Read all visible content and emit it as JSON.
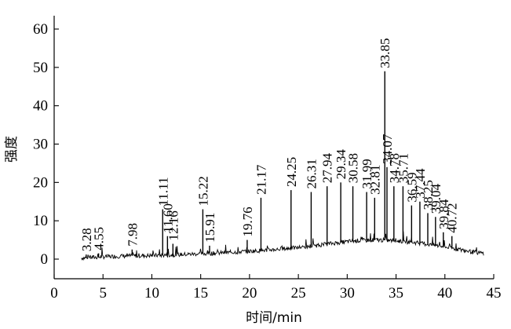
{
  "chart_data": {
    "type": "line",
    "title": "",
    "xlabel": "时间/min",
    "ylabel": "强度",
    "xlim": [
      0,
      45
    ],
    "ylim": [
      -5,
      60
    ],
    "x_ticks": [
      0,
      5,
      10,
      15,
      20,
      25,
      30,
      35,
      40,
      45
    ],
    "y_ticks": [
      0,
      10,
      20,
      30,
      40,
      50,
      60
    ],
    "grid": false,
    "legend": "none",
    "series": [
      {
        "x": [
          2.8,
          5,
          7,
          9,
          11,
          13,
          15,
          17,
          19,
          21,
          23,
          25,
          27,
          29,
          31,
          33,
          35,
          37,
          38.5,
          40,
          41.5,
          43,
          44
        ],
        "values": [
          0.3,
          0.6,
          0.8,
          0.9,
          1.0,
          1.2,
          1.4,
          1.6,
          1.9,
          2.2,
          2.6,
          3.0,
          3.6,
          4.3,
          4.8,
          5.0,
          4.8,
          4.3,
          3.8,
          3.2,
          2.5,
          1.8,
          1.5
        ]
      }
    ],
    "peaks": [
      {
        "label": "3.28",
        "x": 3.28,
        "y": 1.2
      },
      {
        "label": "4.55",
        "x": 4.55,
        "y": 1.5
      },
      {
        "label": "7.98",
        "x": 7.98,
        "y": 2.5
      },
      {
        "label": "11.11",
        "x": 11.11,
        "y": 13
      },
      {
        "label": "11.60",
        "x": 11.6,
        "y": 6
      },
      {
        "label": "12.16",
        "x": 12.16,
        "y": 4
      },
      {
        "label": "15.22",
        "x": 15.22,
        "y": 13
      },
      {
        "label": "15.91",
        "x": 15.91,
        "y": 3.5
      },
      {
        "label": "19.76",
        "x": 19.76,
        "y": 5
      },
      {
        "label": "21.17",
        "x": 21.17,
        "y": 16
      },
      {
        "label": "24.25",
        "x": 24.25,
        "y": 18
      },
      {
        "label": "26.31",
        "x": 26.31,
        "y": 17.5
      },
      {
        "label": "27.94",
        "x": 27.94,
        "y": 19
      },
      {
        "label": "29.34",
        "x": 29.34,
        "y": 20
      },
      {
        "label": "30.58",
        "x": 30.58,
        "y": 19
      },
      {
        "label": "31.99",
        "x": 31.99,
        "y": 17.5
      },
      {
        "label": "32.81",
        "x": 32.81,
        "y": 16
      },
      {
        "label": "33.85",
        "x": 33.85,
        "y": 49
      },
      {
        "label": "34.07",
        "x": 34.07,
        "y": 24
      },
      {
        "label": "34.78",
        "x": 34.78,
        "y": 19
      },
      {
        "label": "35.71",
        "x": 35.71,
        "y": 19
      },
      {
        "label": "36.59",
        "x": 36.59,
        "y": 14
      },
      {
        "label": "37.44",
        "x": 37.44,
        "y": 15
      },
      {
        "label": "38.25",
        "x": 38.25,
        "y": 12
      },
      {
        "label": "39.04",
        "x": 39.04,
        "y": 11
      },
      {
        "label": "39.84",
        "x": 39.84,
        "y": 7
      },
      {
        "label": "40.72",
        "x": 40.72,
        "y": 6
      }
    ],
    "colors": {
      "line": "#000000",
      "background": "#ffffff"
    }
  }
}
